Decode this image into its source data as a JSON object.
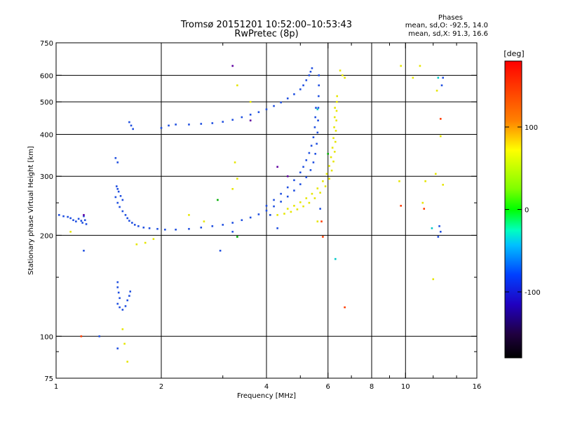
{
  "header": {
    "title": "Tromsø 20151201 10:52:00–10:53:43",
    "subtitle": "RwPretec (8p)",
    "stats_heading": "Phases",
    "stats_o": "mean, sd,O: -92.5, 14.0",
    "stats_x": "mean, sd,X: 91.3, 16.6"
  },
  "chart_data": {
    "type": "scatter",
    "xlabel": "Frequency [MHz]",
    "ylabel": "Stationary phase Virtual Height [km]",
    "xscale": "log",
    "yscale": "log",
    "xlim": [
      1,
      16
    ],
    "ylim": [
      75,
      750
    ],
    "x_ticks": [
      1,
      2,
      4,
      6,
      8,
      10,
      16
    ],
    "x_minor_ticks": [
      3,
      5,
      7,
      9,
      12,
      14
    ],
    "y_ticks": [
      75,
      100,
      200,
      300,
      400,
      500,
      600,
      750
    ],
    "y_minor_ticks": [
      90,
      150,
      250
    ],
    "x_grid": [
      2,
      4,
      6,
      8,
      10
    ],
    "y_grid": [
      100,
      200,
      300,
      400,
      500,
      600
    ],
    "colorbar": {
      "label": "[deg]",
      "min": -180,
      "max": 180,
      "ticks": [
        100,
        0,
        -100
      ],
      "colormap": "rainbow"
    },
    "series": [
      {
        "mode": "O",
        "color": "#1f4fe0",
        "points": [
          [
            1.02,
            230
          ],
          [
            1.05,
            228
          ],
          [
            1.08,
            227
          ],
          [
            1.1,
            225
          ],
          [
            1.12,
            222
          ],
          [
            1.14,
            220
          ],
          [
            1.16,
            224
          ],
          [
            1.18,
            221
          ],
          [
            1.19,
            218
          ],
          [
            1.2,
            228
          ],
          [
            1.21,
            222
          ],
          [
            1.22,
            216
          ],
          [
            1.48,
            260
          ],
          [
            1.5,
            250
          ],
          [
            1.52,
            243
          ],
          [
            1.55,
            236
          ],
          [
            1.58,
            230
          ],
          [
            1.6,
            225
          ],
          [
            1.62,
            221
          ],
          [
            1.65,
            218
          ],
          [
            1.68,
            215
          ],
          [
            1.72,
            213
          ],
          [
            1.78,
            211
          ],
          [
            1.85,
            210
          ],
          [
            1.95,
            209
          ],
          [
            2.05,
            208
          ],
          [
            2.2,
            208
          ],
          [
            2.4,
            209
          ],
          [
            2.6,
            211
          ],
          [
            2.8,
            213
          ],
          [
            3.0,
            215
          ],
          [
            3.2,
            218
          ],
          [
            3.4,
            222
          ],
          [
            3.6,
            226
          ],
          [
            3.8,
            231
          ],
          [
            4.0,
            237
          ],
          [
            4.2,
            244
          ],
          [
            4.4,
            252
          ],
          [
            4.6,
            261
          ],
          [
            4.8,
            272
          ],
          [
            5.0,
            284
          ],
          [
            5.2,
            298
          ],
          [
            5.35,
            313
          ],
          [
            5.45,
            330
          ],
          [
            5.52,
            350
          ],
          [
            5.57,
            375
          ],
          [
            5.6,
            405
          ],
          [
            5.62,
            440
          ],
          [
            5.63,
            480
          ],
          [
            5.64,
            520
          ],
          [
            5.65,
            560
          ],
          [
            5.65,
            600
          ],
          [
            1.49,
            280
          ],
          [
            1.5,
            275
          ],
          [
            1.51,
            270
          ],
          [
            1.53,
            262
          ],
          [
            1.55,
            255
          ],
          [
            1.62,
            435
          ],
          [
            1.64,
            425
          ],
          [
            1.66,
            415
          ],
          [
            2.0,
            418
          ],
          [
            2.1,
            425
          ],
          [
            2.2,
            428
          ],
          [
            2.4,
            428
          ],
          [
            2.6,
            430
          ],
          [
            2.8,
            432
          ],
          [
            3.0,
            436
          ],
          [
            3.2,
            442
          ],
          [
            3.4,
            450
          ],
          [
            3.6,
            458
          ],
          [
            3.8,
            466
          ],
          [
            4.0,
            475
          ],
          [
            4.2,
            486
          ],
          [
            4.4,
            498
          ],
          [
            4.6,
            512
          ],
          [
            4.8,
            527
          ],
          [
            5.0,
            545
          ],
          [
            5.1,
            560
          ],
          [
            5.2,
            580
          ],
          [
            5.3,
            600
          ],
          [
            5.35,
            615
          ],
          [
            5.4,
            630
          ],
          [
            4.0,
            245
          ],
          [
            4.2,
            255
          ],
          [
            4.4,
            266
          ],
          [
            4.6,
            278
          ],
          [
            4.8,
            292
          ],
          [
            5.0,
            308
          ],
          [
            5.1,
            320
          ],
          [
            5.2,
            335
          ],
          [
            5.3,
            352
          ],
          [
            5.38,
            370
          ],
          [
            5.45,
            392
          ],
          [
            5.5,
            420
          ],
          [
            5.52,
            450
          ],
          [
            5.54,
            480
          ],
          [
            1.5,
            145
          ],
          [
            1.5,
            140
          ],
          [
            1.51,
            135
          ],
          [
            1.52,
            130
          ],
          [
            1.5,
            125
          ],
          [
            1.52,
            122
          ],
          [
            1.55,
            120
          ],
          [
            1.58,
            123
          ],
          [
            1.6,
            128
          ],
          [
            1.62,
            132
          ],
          [
            1.63,
            136
          ],
          [
            1.5,
            330
          ],
          [
            1.48,
            340
          ],
          [
            1.33,
            100
          ],
          [
            1.5,
            92
          ],
          [
            1.2,
            180
          ],
          [
            5.7,
            240
          ],
          [
            4.1,
            230
          ],
          [
            3.2,
            205
          ],
          [
            2.95,
            180
          ],
          [
            4.3,
            210
          ],
          [
            12.5,
            213
          ],
          [
            12.6,
            205
          ],
          [
            12.4,
            198
          ],
          [
            12.8,
            590
          ],
          [
            12.7,
            560
          ]
        ]
      },
      {
        "mode": "X",
        "color": "#e6e600",
        "points": [
          [
            4.3,
            230
          ],
          [
            4.5,
            232
          ],
          [
            4.7,
            235
          ],
          [
            4.9,
            239
          ],
          [
            5.1,
            244
          ],
          [
            5.3,
            250
          ],
          [
            5.5,
            258
          ],
          [
            5.7,
            268
          ],
          [
            5.9,
            280
          ],
          [
            6.05,
            295
          ],
          [
            6.15,
            312
          ],
          [
            6.22,
            332
          ],
          [
            6.27,
            355
          ],
          [
            6.3,
            380
          ],
          [
            6.32,
            410
          ],
          [
            6.34,
            440
          ],
          [
            6.35,
            470
          ],
          [
            6.36,
            500
          ],
          [
            6.37,
            520
          ],
          [
            4.6,
            240
          ],
          [
            4.8,
            245
          ],
          [
            5.0,
            251
          ],
          [
            5.2,
            258
          ],
          [
            5.4,
            266
          ],
          [
            5.6,
            276
          ],
          [
            5.8,
            290
          ],
          [
            5.95,
            305
          ],
          [
            6.05,
            322
          ],
          [
            6.12,
            342
          ],
          [
            6.18,
            365
          ],
          [
            6.22,
            390
          ],
          [
            6.25,
            420
          ],
          [
            6.27,
            450
          ],
          [
            6.28,
            480
          ],
          [
            6.5,
            620
          ],
          [
            6.6,
            600
          ],
          [
            6.7,
            590
          ],
          [
            5.6,
            220
          ],
          [
            3.6,
            500
          ],
          [
            3.3,
            560
          ],
          [
            3.25,
            330
          ],
          [
            3.3,
            295
          ],
          [
            3.2,
            275
          ],
          [
            1.8,
            190
          ],
          [
            1.9,
            195
          ],
          [
            1.7,
            188
          ],
          [
            1.55,
            105
          ],
          [
            1.6,
            84
          ],
          [
            1.57,
            95
          ],
          [
            9.7,
            640
          ],
          [
            10.5,
            590
          ],
          [
            11.0,
            640
          ],
          [
            12.3,
            540
          ],
          [
            12.6,
            395
          ],
          [
            12.2,
            305
          ],
          [
            12.8,
            283
          ],
          [
            11.4,
            290
          ],
          [
            11.2,
            250
          ],
          [
            9.6,
            290
          ],
          [
            12.0,
            148
          ],
          [
            1.1,
            205
          ],
          [
            2.65,
            220
          ],
          [
            2.4,
            230
          ]
        ]
      },
      {
        "mode": "other",
        "color": "#ff3c00",
        "points": [
          [
            1.18,
            100
          ],
          [
            5.8,
            198
          ],
          [
            6.7,
            122
          ],
          [
            9.7,
            245
          ],
          [
            11.3,
            240
          ],
          [
            12.6,
            445
          ],
          [
            5.75,
            220
          ]
        ]
      },
      {
        "mode": "other",
        "color": "#00c8c8",
        "points": [
          [
            11.9,
            210
          ],
          [
            5.6,
            475
          ],
          [
            6.3,
            170
          ],
          [
            12.4,
            590
          ]
        ]
      },
      {
        "mode": "other",
        "color": "#6000a0",
        "points": [
          [
            3.6,
            440
          ],
          [
            4.3,
            320
          ],
          [
            4.6,
            300
          ],
          [
            3.2,
            640
          ],
          [
            1.2,
            230
          ]
        ]
      },
      {
        "mode": "other",
        "color": "#00b000",
        "points": [
          [
            3.3,
            198
          ],
          [
            2.9,
            255
          ],
          [
            6.0,
            350
          ]
        ]
      }
    ]
  }
}
